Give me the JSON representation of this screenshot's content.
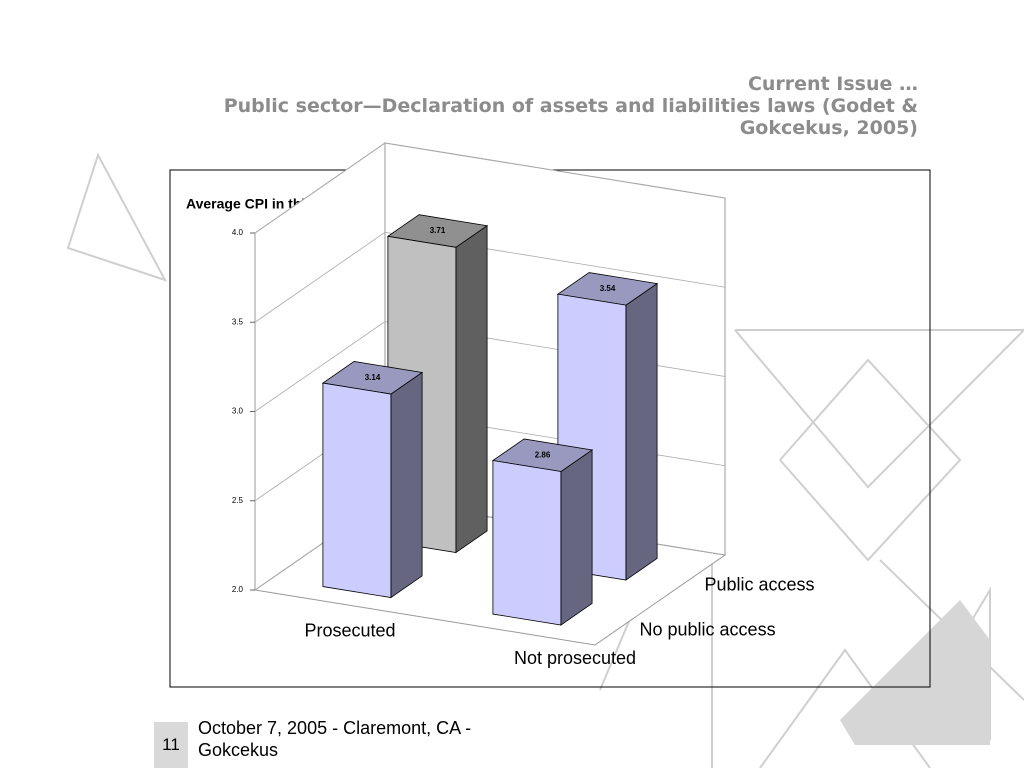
{
  "slide": {
    "number": "11",
    "footer": "October 7, 2005 - Claremont, CA - Gokcekus"
  },
  "chart_data": {
    "type": "bar3d",
    "title": "Current Issue …",
    "subtitle": "Public sector—Declaration of assets and liabilities laws (Godet & Gokcekus, 2005)",
    "y_label": "Average CPI in this group",
    "categories": [
      "Prosecuted",
      "Not prosecuted"
    ],
    "series": [
      {
        "name": "No public access",
        "colors": [
          "#ccccff",
          "#ccccff"
        ],
        "values": [
          3.14,
          2.86
        ]
      },
      {
        "name": "Public access",
        "colors": [
          "#c0c0c0",
          "#ccccff"
        ],
        "values": [
          3.71,
          3.54
        ]
      }
    ],
    "ylim": [
      2,
      4
    ],
    "yticks": [
      {
        "value": 2,
        "label": "2.0"
      },
      {
        "value": 2.5,
        "label": "2.5"
      },
      {
        "value": 3,
        "label": "3.0"
      },
      {
        "value": 3.5,
        "label": "3.5"
      },
      {
        "value": 4,
        "label": "4.0"
      }
    ],
    "grid": true
  }
}
